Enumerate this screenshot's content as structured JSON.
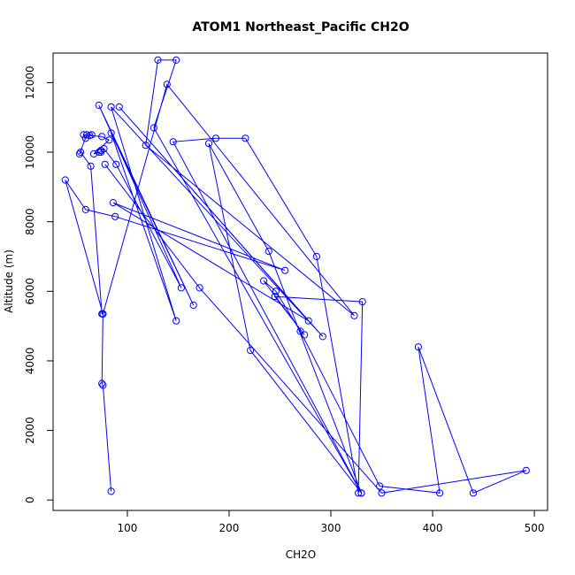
{
  "chart_data": {
    "type": "line",
    "title": "ATOM1 Northeast_Pacific CH2O",
    "xlabel": "CH2O",
    "ylabel": "Altitude (m)",
    "xlim": [
      27,
      513
    ],
    "ylim": [
      -300,
      12850
    ],
    "xticks": [
      100,
      200,
      300,
      400,
      500
    ],
    "yticks": [
      0,
      2000,
      4000,
      6000,
      8000,
      10000,
      12000
    ],
    "grid": false,
    "legend": "none",
    "color": "#0000ff",
    "series": [
      {
        "markers": true,
        "points": [
          [
            84,
            250
          ],
          [
            76,
            3300
          ],
          [
            75,
            3350
          ],
          [
            76,
            5350
          ],
          [
            75,
            5350
          ],
          [
            64,
            9600
          ],
          [
            54,
            10000
          ],
          [
            53,
            9950
          ],
          [
            60,
            10500
          ],
          [
            59,
            10400
          ],
          [
            57,
            10500
          ],
          [
            65,
            10500
          ],
          [
            63,
            10480
          ],
          [
            75,
            10450
          ],
          [
            82,
            10350
          ],
          [
            67,
            9950
          ],
          [
            72,
            10000
          ],
          [
            74,
            10000
          ],
          [
            74,
            10050
          ],
          [
            77,
            10100
          ],
          [
            89,
            9650
          ],
          [
            153,
            6100
          ],
          [
            72,
            11350
          ],
          [
            165,
            5600
          ],
          [
            84,
            10550
          ],
          [
            148,
            5150
          ],
          [
            84,
            11300
          ],
          [
            292,
            4700
          ],
          [
            92,
            11300
          ],
          [
            278,
            5150
          ],
          [
            86,
            8550
          ],
          [
            255,
            6600
          ],
          [
            88,
            8150
          ],
          [
            59,
            8350
          ],
          [
            39,
            9200
          ],
          [
            76,
            5350
          ],
          [
            139,
            11950
          ],
          [
            323,
            5300
          ],
          [
            118,
            10200
          ],
          [
            130,
            12650
          ],
          [
            148,
            12650
          ],
          [
            126,
            10700
          ],
          [
            330,
            200
          ],
          [
            221,
            4300
          ],
          [
            180,
            10250
          ],
          [
            239,
            7150
          ],
          [
            330,
            200
          ],
          [
            145,
            10300
          ],
          [
            187,
            10400
          ],
          [
            216,
            10400
          ],
          [
            286,
            7000
          ],
          [
            327,
            200
          ],
          [
            331,
            5700
          ],
          [
            245,
            5850
          ],
          [
            274,
            4750
          ],
          [
            234,
            6300
          ],
          [
            246,
            6000
          ],
          [
            270,
            4850
          ],
          [
            348,
            400
          ],
          [
            407,
            200
          ],
          [
            386,
            4400
          ],
          [
            440,
            200
          ],
          [
            492,
            850
          ],
          [
            350,
            200
          ],
          [
            171,
            6100
          ],
          [
            78,
            9650
          ]
        ]
      }
    ]
  }
}
